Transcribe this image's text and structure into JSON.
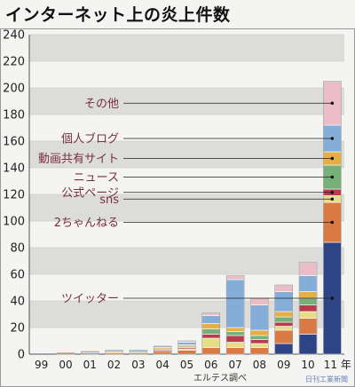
{
  "title": "インターネット上の炎上件数",
  "credit": "日刊工業新聞",
  "chart_data": {
    "type": "bar",
    "stacked": true,
    "title": "インターネット上の炎上件数",
    "categories": [
      "99",
      "00",
      "01",
      "02",
      "03",
      "04",
      "05",
      "06",
      "07",
      "08",
      "09",
      "10",
      "11"
    ],
    "x_unit": "年",
    "x_note": "エルテス調べ",
    "ylim": [
      0,
      240
    ],
    "yticks": [
      0,
      20,
      40,
      60,
      80,
      100,
      120,
      140,
      160,
      180,
      200,
      220,
      240
    ],
    "grid": true,
    "series": [
      {
        "name": "ツイッター",
        "color": "#2e4585",
        "values": [
          0,
          0,
          0,
          0,
          0,
          0,
          0,
          0,
          0,
          0,
          8,
          15,
          84
        ]
      },
      {
        "name": "2ちゃんねる",
        "color": "#d97a45",
        "values": [
          0,
          1,
          1,
          1,
          1,
          2,
          3,
          5,
          5,
          5,
          10,
          12,
          30
        ]
      },
      {
        "name": "sns",
        "color": "#e6dd86",
        "values": [
          0,
          0,
          0,
          0,
          0,
          0,
          1,
          7,
          4,
          3,
          3,
          5,
          5
        ]
      },
      {
        "name": "公式ページ",
        "color": "#b83c4e",
        "values": [
          0,
          0,
          0,
          0,
          0,
          1,
          1,
          3,
          5,
          3,
          3,
          5,
          5
        ]
      },
      {
        "name": "ニュース",
        "color": "#78b07a",
        "values": [
          0,
          0,
          0,
          0,
          1,
          1,
          1,
          4,
          3,
          3,
          4,
          5,
          18
        ]
      },
      {
        "name": "動画共有サイト",
        "color": "#e6ae45",
        "values": [
          0,
          0,
          0,
          1,
          0,
          1,
          1,
          4,
          3,
          4,
          4,
          5,
          10
        ]
      },
      {
        "name": "個人ブログ",
        "color": "#84aed8",
        "values": [
          0,
          0,
          1,
          1,
          1,
          1,
          2,
          6,
          36,
          19,
          15,
          12,
          20
        ]
      },
      {
        "name": "その他",
        "color": "#eabdc9",
        "values": [
          0,
          0,
          0,
          0,
          0,
          0,
          1,
          2,
          3,
          5,
          5,
          10,
          33
        ]
      }
    ]
  }
}
